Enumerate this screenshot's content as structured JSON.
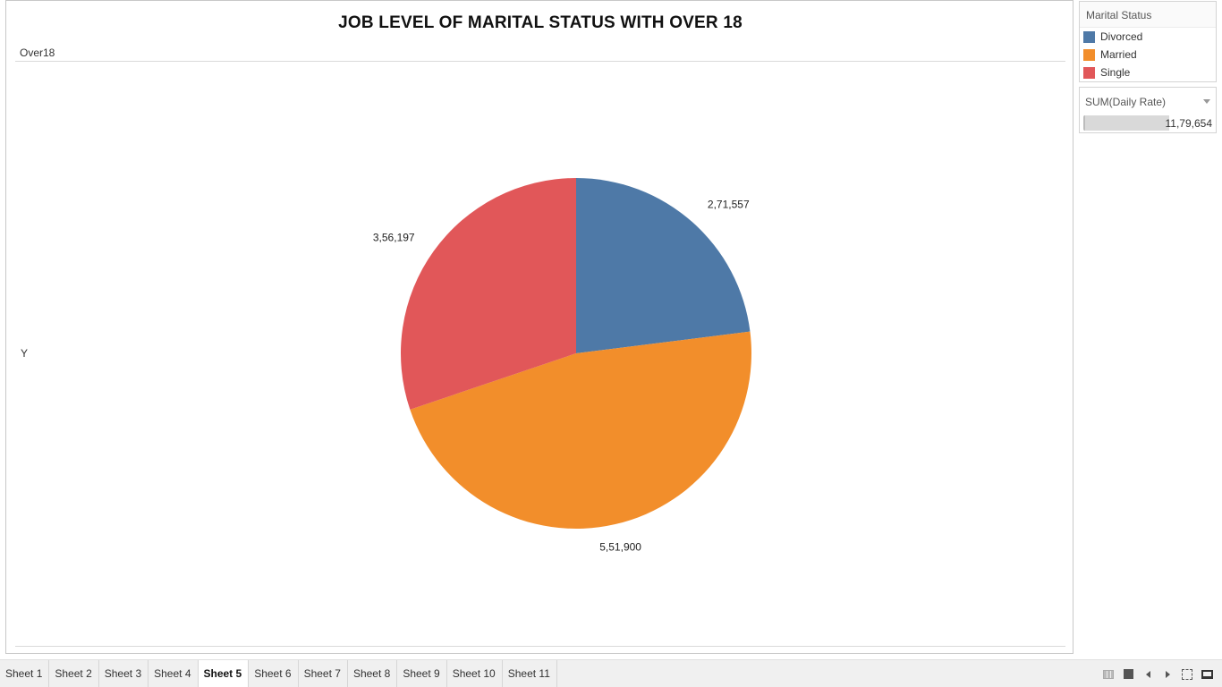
{
  "chart_data": {
    "type": "pie",
    "title": "JOB LEVEL OF MARITAL STATUS WITH OVER 18",
    "column_header": "Over18",
    "row_header": "Y",
    "categories": [
      "Divorced",
      "Married",
      "Single"
    ],
    "values": [
      271557,
      551900,
      356197
    ],
    "value_labels": [
      "2,71,557",
      "5,51,900",
      "3,56,197"
    ],
    "colors": [
      "#4e79a7",
      "#f28e2b",
      "#e15759"
    ]
  },
  "legend": {
    "title": "Marital Status",
    "items": [
      {
        "label": "Divorced",
        "color": "#4e79a7"
      },
      {
        "label": "Married",
        "color": "#f28e2b"
      },
      {
        "label": "Single",
        "color": "#e15759"
      }
    ]
  },
  "size_legend": {
    "title": "SUM(Daily Rate)",
    "value": "11,79,654"
  },
  "tabs": [
    {
      "label": "Sheet 1"
    },
    {
      "label": "Sheet 2"
    },
    {
      "label": "Sheet 3"
    },
    {
      "label": "Sheet 4"
    },
    {
      "label": "Sheet 5",
      "active": true
    },
    {
      "label": "Sheet 6"
    },
    {
      "label": "Sheet 7"
    },
    {
      "label": "Sheet 8"
    },
    {
      "label": "Sheet 9"
    },
    {
      "label": "Sheet 10"
    },
    {
      "label": "Sheet 11"
    }
  ],
  "nav_icons": [
    "show-sheet-sorter-icon",
    "show-filmstrip-icon",
    "previous-sheet-icon",
    "next-sheet-icon",
    "full-screen-icon",
    "presentation-mode-icon"
  ]
}
